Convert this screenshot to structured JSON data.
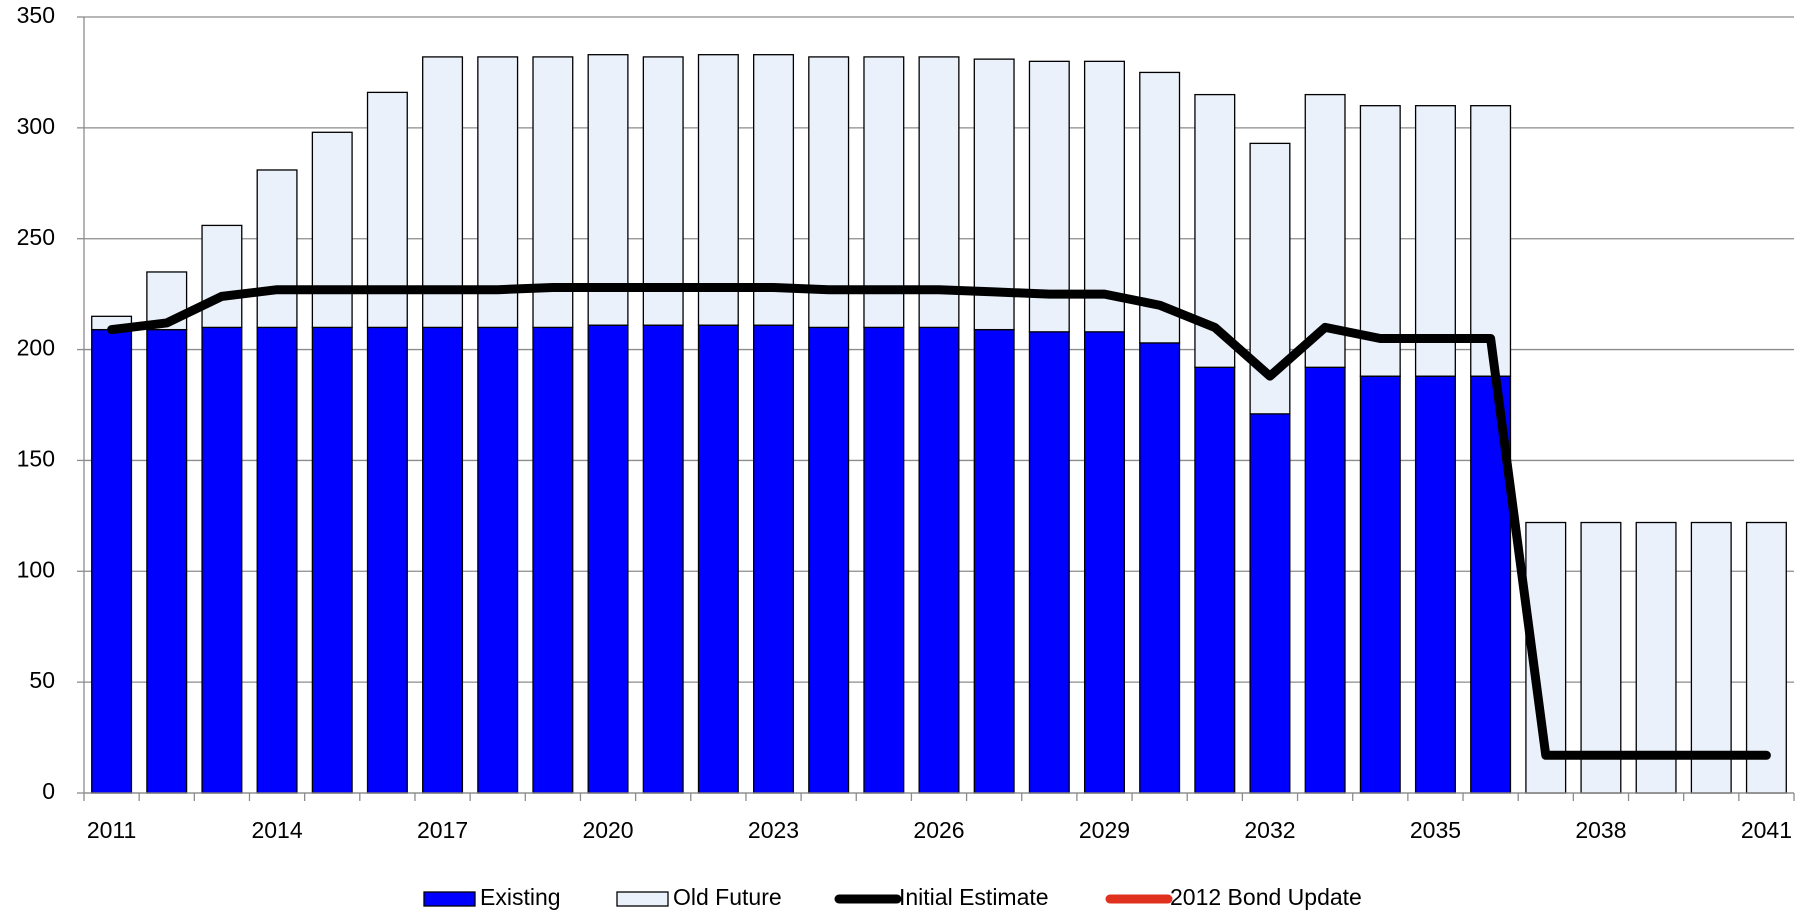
{
  "chart_data": {
    "type": "bar",
    "stacked": true,
    "grid": true,
    "categories": [
      "2011",
      null,
      null,
      "2014",
      null,
      null,
      "2017",
      null,
      null,
      "2020",
      null,
      null,
      "2023",
      null,
      null,
      "2026",
      null,
      null,
      "2029",
      null,
      null,
      "2032",
      null,
      null,
      "2035",
      null,
      null,
      "2038",
      null,
      null,
      "2041"
    ],
    "ylim": [
      0,
      350
    ],
    "yticks": [
      0,
      50,
      100,
      150,
      200,
      250,
      300,
      350
    ],
    "series": [
      {
        "name": "Existing",
        "type": "bar",
        "color": "#0000ff",
        "values": [
          209,
          209,
          210,
          210,
          210,
          210,
          210,
          210,
          210,
          211,
          211,
          211,
          211,
          210,
          210,
          210,
          209,
          208,
          208,
          203,
          192,
          171,
          192,
          188,
          188,
          188,
          0,
          0,
          0,
          0,
          0
        ]
      },
      {
        "name": "Old Future",
        "type": "bar",
        "color": "#eaf1fb",
        "values": [
          6,
          26,
          46,
          71,
          88,
          106,
          122,
          122,
          122,
          122,
          121,
          122,
          122,
          122,
          122,
          122,
          122,
          122,
          122,
          122,
          123,
          122,
          123,
          122,
          122,
          122,
          122,
          122,
          122,
          122,
          122
        ]
      },
      {
        "name": "Initial Estimate",
        "type": "line",
        "color": "#000000",
        "values": [
          209,
          212,
          224,
          227,
          227,
          227,
          227,
          227,
          228,
          228,
          228,
          228,
          228,
          227,
          227,
          227,
          226,
          225,
          225,
          220,
          210,
          188,
          210,
          205,
          205,
          205,
          17,
          17,
          17,
          17,
          17
        ]
      },
      {
        "name": "2012 Bond Update",
        "type": "line",
        "color": "#e0301e",
        "values": [
          null,
          null,
          null,
          null,
          null,
          null,
          null,
          null,
          null,
          null,
          null,
          null,
          null,
          null,
          null,
          null,
          null,
          null,
          null,
          null,
          null,
          null,
          null,
          null,
          null,
          null,
          null,
          null,
          null,
          null,
          null
        ]
      }
    ]
  }
}
